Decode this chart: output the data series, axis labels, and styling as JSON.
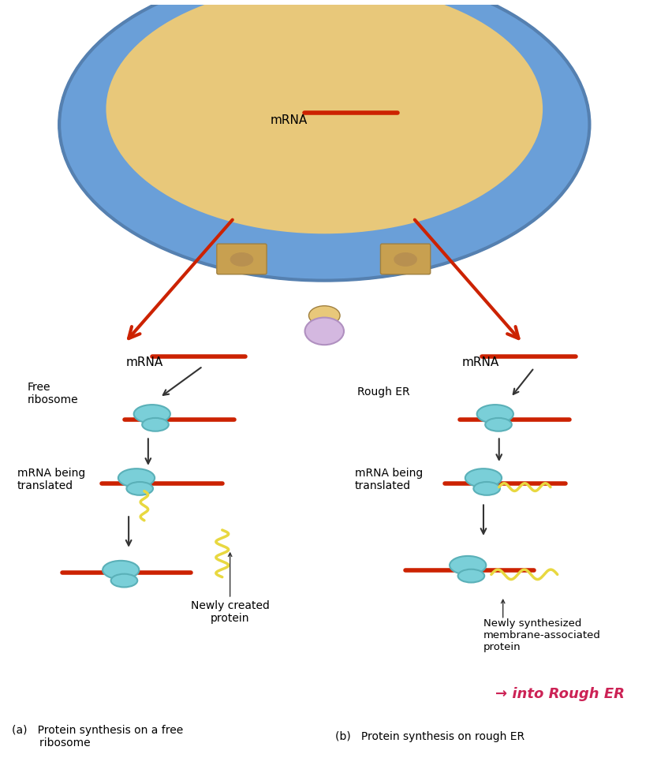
{
  "bg_color": "#ffffff",
  "panel_bg": "#e8e0ee",
  "nucleus_outer": "#6a9fd8",
  "nucleus_inner": "#e8c87a",
  "nucleus_pore": "#c8a050",
  "er_membrane_color": "#c090c0",
  "er_inner_color": "#d8b8d0",
  "mrna_color": "#cc2200",
  "ribosome_color1": "#7acfd8",
  "ribosome_color2": "#5ab0b8",
  "protein_color": "#e8d840",
  "arrow_color": "#333333",
  "red_arrow_color": "#cc2200",
  "mrna_label": "mRNA",
  "free_ribosome_label": "Free\nribosome",
  "mrna_being_translated_label": "mRNA being\ntranslated",
  "newly_created_protein_label": "Newly created\nprotein",
  "rough_er_label": "Rough ER",
  "newly_synthesized_label": "Newly synthesized\nmembrane-associated\nprotein",
  "into_rough_er_label": "→ into Rough ER",
  "handwritten_color": "#cc2255",
  "caption_a": "(a)   Protein synthesis on a free\n        ribosome",
  "caption_b": "(b)   Protein synthesis on rough ER"
}
